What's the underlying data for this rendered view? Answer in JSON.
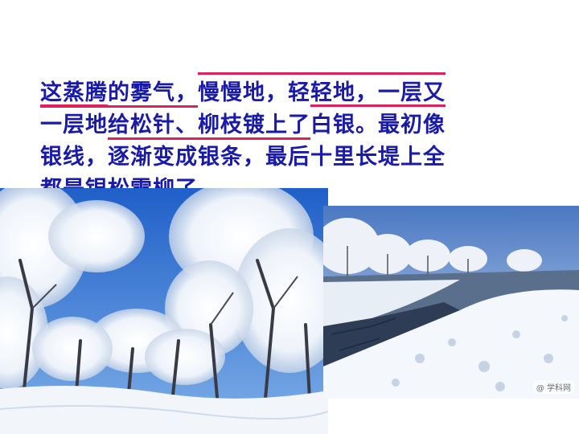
{
  "passage": {
    "line1": {
      "a": "这蒸腾的雾气，",
      "b": "慢慢地，轻轻地，",
      "c": "一层又"
    },
    "line2": {
      "a": "一层地",
      "b": "给松针、柳枝镀上了",
      "c": "白银。最初像"
    },
    "line3": "银线，逐渐变成银条，最后十里长堤上全",
    "line4": "都是银松雪柳了。"
  },
  "images": {
    "left": {
      "subject": "frosted-trees-blue-sky"
    },
    "right": {
      "subject": "frozen-river-rime-trees"
    }
  },
  "watermark": "@ 学科网",
  "colors": {
    "text": "#1a1aa8",
    "highlight": "#e0205a",
    "sky": "#2f6fd0",
    "snow": "#f2f6fb"
  }
}
